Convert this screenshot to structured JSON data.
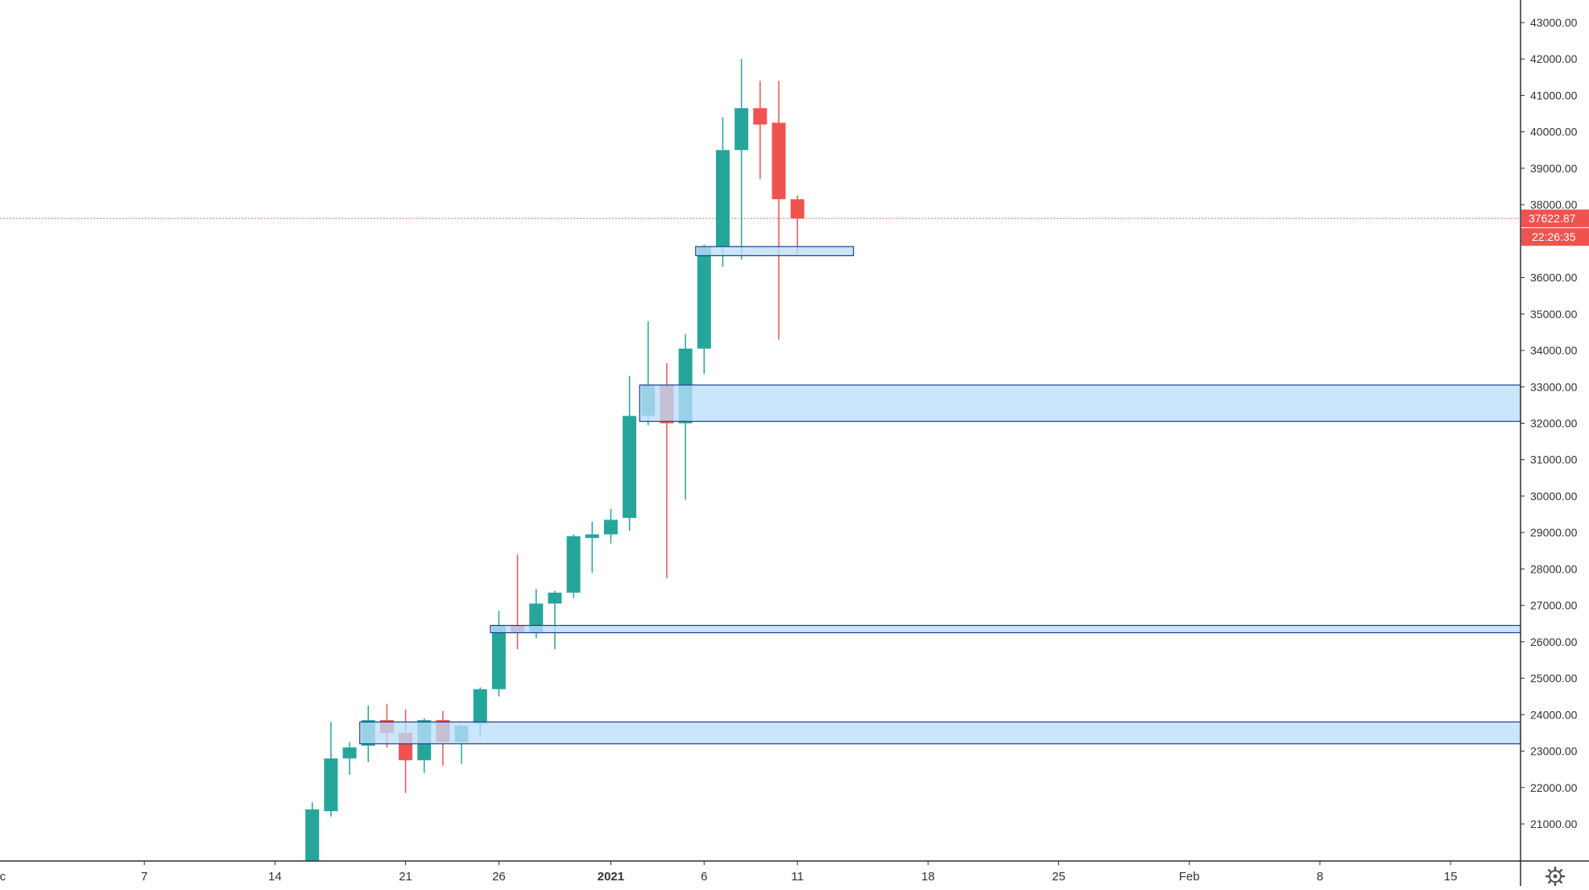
{
  "chart_data": {
    "type": "candlestick",
    "title": "",
    "xlabel": "",
    "ylabel": "",
    "ylim": [
      20000,
      43500
    ],
    "x_ticks": [
      {
        "day": -1,
        "label": "Dec",
        "bold": false
      },
      {
        "day": 7,
        "label": "7",
        "bold": false
      },
      {
        "day": 14,
        "label": "14",
        "bold": false
      },
      {
        "day": 21,
        "label": "21",
        "bold": false
      },
      {
        "day": 26,
        "label": "26",
        "bold": false
      },
      {
        "day": 32,
        "label": "2021",
        "bold": true
      },
      {
        "day": 37,
        "label": "6",
        "bold": false
      },
      {
        "day": 42,
        "label": "11",
        "bold": false
      },
      {
        "day": 49,
        "label": "18",
        "bold": false
      },
      {
        "day": 56,
        "label": "25",
        "bold": false
      },
      {
        "day": 63,
        "label": "Feb",
        "bold": false
      },
      {
        "day": 70,
        "label": "8",
        "bold": false
      },
      {
        "day": 77,
        "label": "15",
        "bold": false
      }
    ],
    "y_ticks": [
      "21000.00",
      "22000.00",
      "23000.00",
      "24000.00",
      "25000.00",
      "26000.00",
      "27000.00",
      "28000.00",
      "29000.00",
      "30000.00",
      "31000.00",
      "32000.00",
      "33000.00",
      "34000.00",
      "35000.00",
      "36000.00",
      "37000.00",
      "38000.00",
      "39000.00",
      "40000.00",
      "41000.00",
      "42000.00",
      "43000.00"
    ],
    "candles": [
      {
        "day": 16,
        "open": 19400,
        "high": 21600,
        "low": 19300,
        "close": 21400
      },
      {
        "day": 17,
        "open": 21350,
        "high": 23800,
        "low": 21200,
        "close": 22800
      },
      {
        "day": 18,
        "open": 22800,
        "high": 23250,
        "low": 22350,
        "close": 23100
      },
      {
        "day": 19,
        "open": 23150,
        "high": 24250,
        "low": 22700,
        "close": 23850
      },
      {
        "day": 20,
        "open": 23850,
        "high": 24300,
        "low": 23100,
        "close": 23500
      },
      {
        "day": 21,
        "open": 23500,
        "high": 24150,
        "low": 21850,
        "close": 22750
      },
      {
        "day": 22,
        "open": 22750,
        "high": 23900,
        "low": 22400,
        "close": 23850
      },
      {
        "day": 23,
        "open": 23850,
        "high": 24100,
        "low": 22600,
        "close": 23250
      },
      {
        "day": 24,
        "open": 23250,
        "high": 23750,
        "low": 22650,
        "close": 23700
      },
      {
        "day": 25,
        "open": 23750,
        "high": 24750,
        "low": 23400,
        "close": 24700
      },
      {
        "day": 26,
        "open": 24700,
        "high": 26850,
        "low": 24500,
        "close": 26450
      },
      {
        "day": 27,
        "open": 26450,
        "high": 28400,
        "low": 25800,
        "close": 26250
      },
      {
        "day": 28,
        "open": 26250,
        "high": 27450,
        "low": 26100,
        "close": 27050
      },
      {
        "day": 29,
        "open": 27050,
        "high": 27400,
        "low": 25800,
        "close": 27350
      },
      {
        "day": 30,
        "open": 27350,
        "high": 28950,
        "low": 27200,
        "close": 28900
      },
      {
        "day": 31,
        "open": 28850,
        "high": 29300,
        "low": 27900,
        "close": 28950
      },
      {
        "day": 32,
        "open": 28950,
        "high": 29650,
        "low": 28700,
        "close": 29350
      },
      {
        "day": 33,
        "open": 29400,
        "high": 33300,
        "low": 29050,
        "close": 32200
      },
      {
        "day": 34,
        "open": 32200,
        "high": 34800,
        "low": 31950,
        "close": 33050
      },
      {
        "day": 35,
        "open": 33050,
        "high": 33650,
        "low": 27750,
        "close": 32000
      },
      {
        "day": 36,
        "open": 32000,
        "high": 34450,
        "low": 29900,
        "close": 34050
      },
      {
        "day": 37,
        "open": 34050,
        "high": 36900,
        "low": 33350,
        "close": 36850
      },
      {
        "day": 38,
        "open": 36850,
        "high": 40400,
        "low": 36300,
        "close": 39500
      },
      {
        "day": 39,
        "open": 39500,
        "high": 42000,
        "low": 36500,
        "close": 40650
      },
      {
        "day": 40,
        "open": 40650,
        "high": 41400,
        "low": 38700,
        "close": 40200
      },
      {
        "day": 41,
        "open": 40250,
        "high": 41400,
        "low": 34300,
        "close": 38150
      },
      {
        "day": 42,
        "open": 38150,
        "high": 38250,
        "low": 36650,
        "close": 37622.87
      }
    ],
    "zones": [
      {
        "start_day": 37,
        "end_day": 45,
        "low": 36600,
        "high": 36850
      },
      {
        "start_day": 34,
        "end_day": 81,
        "low": 32050,
        "high": 33050
      },
      {
        "start_day": 26,
        "end_day": 81,
        "low": 26250,
        "high": 26450
      },
      {
        "start_day": 19,
        "end_day": 81,
        "low": 23200,
        "high": 23800
      }
    ],
    "last_price": 37622.87,
    "last_price_label": "37622.87",
    "countdown_label": "22:26:35",
    "colors": {
      "up": "#26a69a",
      "down": "#ef5350",
      "zone_fill": "#bbdefb",
      "zone_border": "#1e3f8f",
      "price_line": "#ef5350",
      "axis_text": "#333333",
      "axis_line": "#2a2e39"
    }
  }
}
